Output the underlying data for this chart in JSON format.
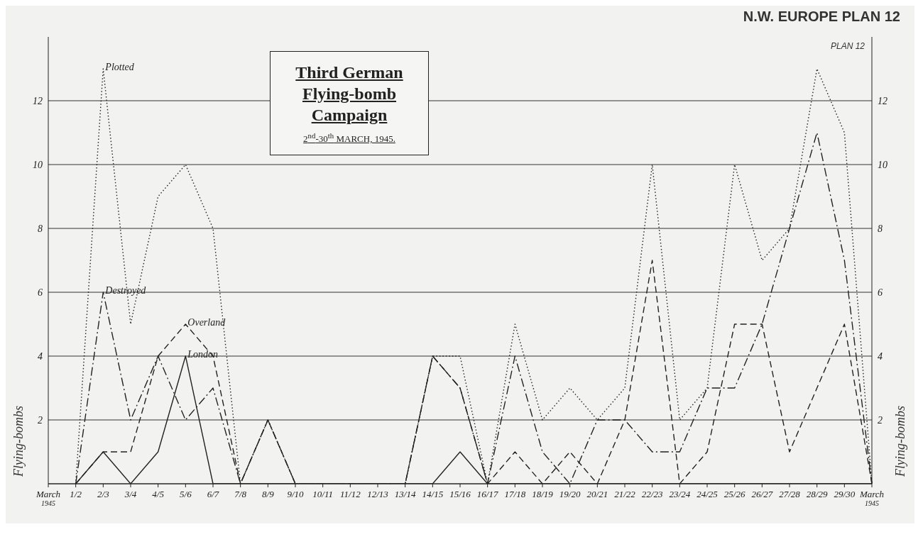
{
  "chart_data": {
    "type": "line",
    "title": "Third German Flying-bomb Campaign",
    "subtitle": "2$^{nd}$-30$^{th}$ MARCH, 1945.",
    "annotations": [
      "N.W. EUROPE PLAN 12",
      "PLAN 12"
    ],
    "ylabel": "Flying-bombs",
    "y2label": "Flying-bombs",
    "categories": [
      "March$_{1945}$",
      "1/2",
      "2/3",
      "3/4",
      "4/5",
      "5/6",
      "6/7",
      "7/8",
      "8/9",
      "9/10",
      "10/11",
      "11/12",
      "12/13",
      "13/14",
      "14/15",
      "15/16",
      "16/17",
      "17/18",
      "18/19",
      "19/20",
      "20/21",
      "21/22",
      "22/23",
      "23/24",
      "24/25",
      "25/26",
      "26/27",
      "27/28",
      "28/29",
      "29/30",
      "March$_{1945}$"
    ],
    "series": [
      {
        "name": "Plotted",
        "color": "#222222",
        "line_style": "dotted",
        "values": [
          null,
          0,
          13,
          5,
          9,
          10,
          8,
          0,
          2,
          0,
          0,
          0,
          0,
          0,
          4,
          4,
          0,
          5,
          2,
          3,
          2,
          3,
          10,
          2,
          3,
          10,
          7,
          8,
          13,
          11,
          0
        ]
      },
      {
        "name": "Destroyed",
        "color": "#222222",
        "line_style": "dashdot",
        "values": [
          null,
          0,
          6,
          2,
          4,
          2,
          3,
          0,
          2,
          0,
          0,
          0,
          0,
          0,
          4,
          3,
          0,
          4,
          1,
          0,
          2,
          2,
          1,
          1,
          3,
          3,
          5,
          8,
          11,
          7,
          0
        ]
      },
      {
        "name": "Overland",
        "color": "#222222",
        "line_style": "dashed",
        "values": [
          null,
          0,
          1,
          1,
          4,
          5,
          4,
          0,
          2,
          0,
          0,
          0,
          0,
          0,
          4,
          3,
          0,
          1,
          0,
          1,
          0,
          2,
          7,
          0,
          1,
          5,
          5,
          1,
          3,
          5,
          0
        ]
      },
      {
        "name": "London",
        "color": "#222222",
        "line_style": "solid",
        "values": [
          null,
          0,
          1,
          0,
          1,
          4,
          0,
          0,
          0,
          0,
          0,
          0,
          0,
          0,
          0,
          1,
          0,
          0,
          0,
          0,
          0,
          0,
          0,
          0,
          0,
          0,
          0,
          0,
          0,
          0,
          0
        ]
      }
    ],
    "ylim": [
      0,
      14
    ],
    "yticks": [
      {
        "value": 0,
        "label": null
      },
      2,
      4,
      6,
      8,
      10,
      12
    ],
    "y2lim": [
      0,
      14
    ],
    "y2ticks": [
      2,
      4,
      6,
      8,
      10,
      12
    ],
    "grid": "y"
  }
}
